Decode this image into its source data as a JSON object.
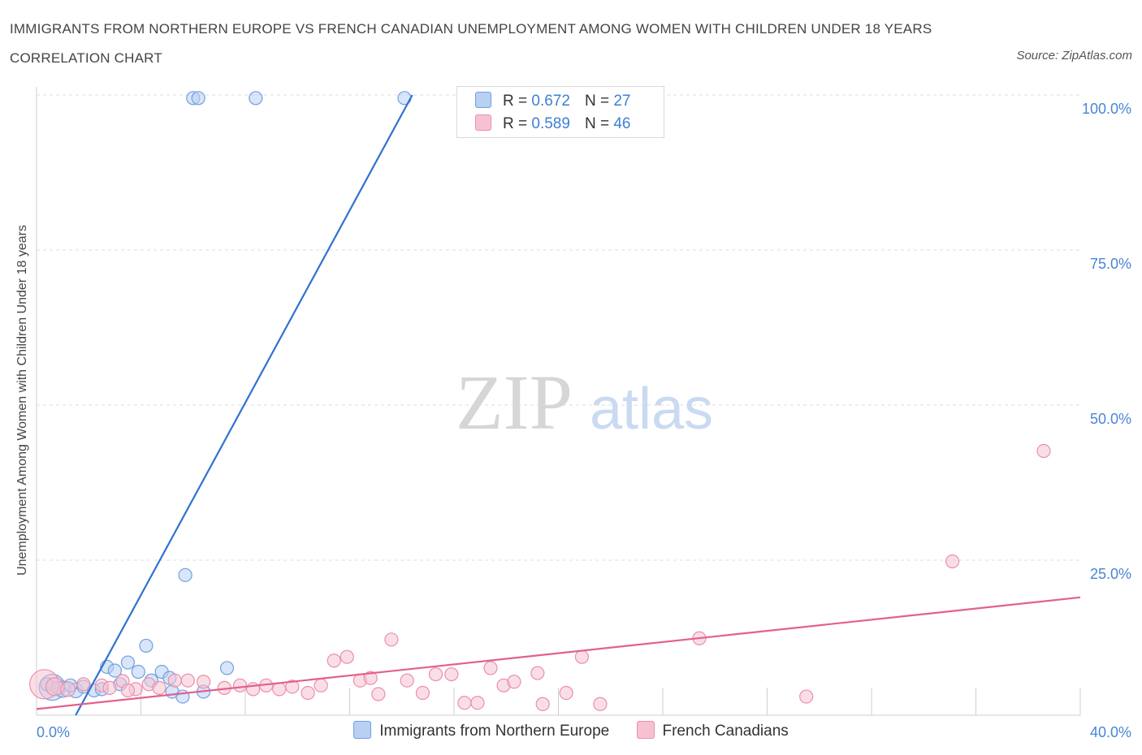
{
  "chart_data": {
    "type": "scatter",
    "title": "IMMIGRANTS FROM NORTHERN EUROPE VS FRENCH CANADIAN UNEMPLOYMENT AMONG WOMEN WITH CHILDREN UNDER 18 YEARS CORRELATION CHART",
    "source": "Source: ZipAtlas.com",
    "xlabel": "",
    "ylabel": "Unemployment Among Women with Children Under 18 years",
    "xlim": [
      0,
      40
    ],
    "ylim": [
      0,
      100
    ],
    "x_tick_labels": [
      "0.0%",
      "40.0%"
    ],
    "y_ticks": [
      25,
      50,
      75,
      100
    ],
    "y_tick_labels": [
      "25.0%",
      "50.0%",
      "75.0%",
      "100.0%"
    ],
    "watermark": {
      "zip": "ZIP",
      "atlas": "atlas"
    },
    "legend": [
      {
        "r_label": "R =",
        "r_value": "0.672",
        "n_label": "N =",
        "n_value": "27"
      },
      {
        "r_label": "R =",
        "r_value": "0.589",
        "n_label": "N =",
        "n_value": "46"
      }
    ],
    "series": [
      {
        "name": "Immigrants from Northern Europe",
        "color": "#6fa0e0",
        "fill": "#b9d0f3",
        "line_color": "#2f72cf",
        "trend": {
          "x0": 1.5,
          "y0": 0,
          "x1": 14.4,
          "y1": 100
        },
        "points": [
          [
            0.6,
            4.5,
            16
          ],
          [
            1.0,
            4.2,
            10
          ],
          [
            1.5,
            4.0,
            9
          ],
          [
            1.8,
            4.6,
            8
          ],
          [
            2.2,
            4.0,
            8
          ],
          [
            2.5,
            4.2,
            8
          ],
          [
            2.7,
            7.8,
            8
          ],
          [
            3.0,
            7.2,
            8
          ],
          [
            3.2,
            5.0,
            8
          ],
          [
            3.5,
            8.5,
            8
          ],
          [
            3.9,
            7.0,
            8
          ],
          [
            4.2,
            11.2,
            8
          ],
          [
            4.4,
            5.6,
            8
          ],
          [
            4.8,
            7.0,
            8
          ],
          [
            5.1,
            6.0,
            8
          ],
          [
            5.2,
            3.8,
            8
          ],
          [
            5.6,
            3.0,
            8
          ],
          [
            5.7,
            22.6,
            8
          ],
          [
            6.4,
            3.8,
            8
          ],
          [
            7.3,
            7.6,
            8
          ],
          [
            6.0,
            99.5,
            8
          ],
          [
            6.2,
            99.5,
            8
          ],
          [
            8.4,
            99.5,
            8
          ],
          [
            14.1,
            99.5,
            8
          ],
          [
            1.3,
            4.8,
            8
          ],
          [
            0.4,
            5.0,
            8
          ],
          [
            0.8,
            4.4,
            8
          ]
        ]
      },
      {
        "name": "French Canadians",
        "color": "#ea8fab",
        "fill": "#f6c2d1",
        "line_color": "#e2618c",
        "trend": {
          "x0": 0,
          "y0": 1.0,
          "x1": 40,
          "y1": 19.0
        },
        "points": [
          [
            0.3,
            5.0,
            18
          ],
          [
            0.7,
            4.6,
            11
          ],
          [
            1.2,
            4.2,
            9
          ],
          [
            1.8,
            5.0,
            8
          ],
          [
            2.5,
            4.8,
            8
          ],
          [
            2.8,
            4.4,
            8
          ],
          [
            3.3,
            5.5,
            8
          ],
          [
            3.8,
            4.2,
            8
          ],
          [
            4.3,
            5.0,
            8
          ],
          [
            4.7,
            4.4,
            8
          ],
          [
            5.3,
            5.6,
            8
          ],
          [
            5.8,
            5.6,
            8
          ],
          [
            6.4,
            5.4,
            8
          ],
          [
            7.2,
            4.4,
            8
          ],
          [
            7.8,
            4.8,
            8
          ],
          [
            8.3,
            4.2,
            8
          ],
          [
            8.8,
            4.8,
            8
          ],
          [
            9.3,
            4.2,
            8
          ],
          [
            9.8,
            4.6,
            8
          ],
          [
            10.4,
            3.6,
            8
          ],
          [
            10.9,
            4.8,
            8
          ],
          [
            11.4,
            8.8,
            8
          ],
          [
            11.9,
            9.4,
            8
          ],
          [
            12.4,
            5.6,
            8
          ],
          [
            12.8,
            6.0,
            8
          ],
          [
            13.1,
            3.4,
            8
          ],
          [
            13.6,
            12.2,
            8
          ],
          [
            14.2,
            5.6,
            8
          ],
          [
            14.8,
            3.6,
            8
          ],
          [
            15.3,
            6.6,
            8
          ],
          [
            15.9,
            6.6,
            8
          ],
          [
            16.4,
            2.0,
            8
          ],
          [
            16.9,
            2.0,
            8
          ],
          [
            17.4,
            7.6,
            8
          ],
          [
            17.9,
            4.8,
            8
          ],
          [
            18.3,
            5.4,
            8
          ],
          [
            19.2,
            6.8,
            8
          ],
          [
            19.4,
            1.8,
            8
          ],
          [
            20.3,
            3.6,
            8
          ],
          [
            20.9,
            9.4,
            8
          ],
          [
            21.6,
            1.8,
            8
          ],
          [
            25.4,
            12.4,
            8
          ],
          [
            29.5,
            3.0,
            8
          ],
          [
            35.1,
            24.8,
            8
          ],
          [
            38.6,
            42.6,
            8
          ],
          [
            3.5,
            4.0,
            8
          ]
        ]
      }
    ]
  }
}
